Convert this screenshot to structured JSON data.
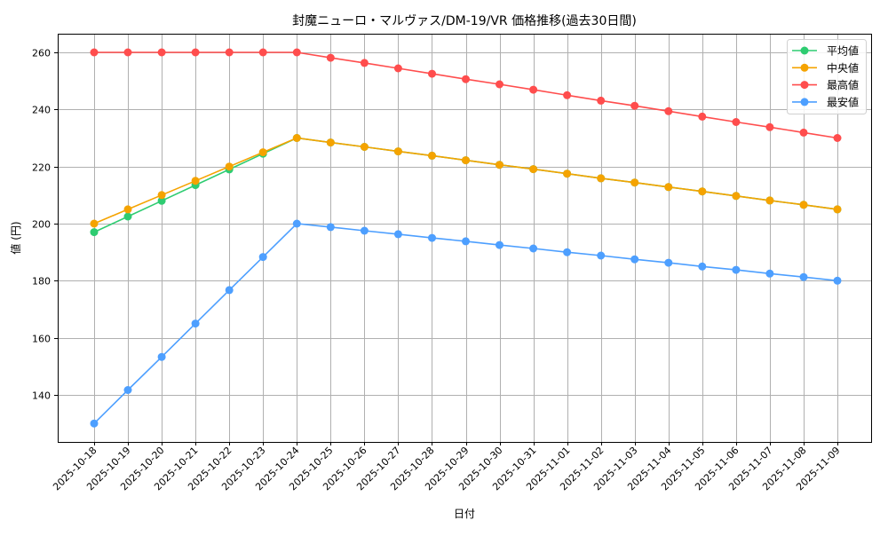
{
  "chart_data": {
    "type": "line",
    "title": "封魔ニューロ・マルヴァス/DM-19/VR 価格推移(過去30日間)",
    "xlabel": "日付",
    "ylabel": "値 (円)",
    "ylim": [
      123,
      266
    ],
    "yticks": [
      140,
      160,
      180,
      200,
      220,
      240,
      260
    ],
    "grid": true,
    "legend_position": "upper right",
    "categories": [
      "2025-10-18",
      "2025-10-19",
      "2025-10-20",
      "2025-10-21",
      "2025-10-22",
      "2025-10-23",
      "2025-10-24",
      "2025-10-25",
      "2025-10-26",
      "2025-10-27",
      "2025-10-28",
      "2025-10-29",
      "2025-10-30",
      "2025-10-31",
      "2025-11-01",
      "2025-11-02",
      "2025-11-03",
      "2025-11-04",
      "2025-11-05",
      "2025-11-06",
      "2025-11-07",
      "2025-11-08",
      "2025-11-09"
    ],
    "series": [
      {
        "name": "平均値",
        "color": "#2ecc71",
        "values": [
          197,
          202.5,
          208,
          213.5,
          219,
          224.5,
          230,
          228.4,
          226.9,
          225.3,
          223.8,
          222.2,
          220.6,
          219.1,
          217.5,
          215.9,
          214.4,
          212.8,
          211.3,
          209.7,
          208.1,
          206.6,
          205
        ]
      },
      {
        "name": "中央値",
        "color": "#f5a300",
        "values": [
          200,
          205,
          210,
          215,
          220,
          225,
          230,
          228.4,
          226.9,
          225.3,
          223.8,
          222.2,
          220.6,
          219.1,
          217.5,
          215.9,
          214.4,
          212.8,
          211.3,
          209.7,
          208.1,
          206.6,
          205
        ]
      },
      {
        "name": "最高値",
        "color": "#ff4d4d",
        "values": [
          260,
          260,
          260,
          260,
          260,
          260,
          260,
          258.1,
          256.3,
          254.4,
          252.5,
          250.6,
          248.8,
          246.9,
          245,
          243.1,
          241.3,
          239.4,
          237.5,
          235.6,
          233.8,
          231.9,
          230
        ]
      },
      {
        "name": "最安値",
        "color": "#4d9fff",
        "values": [
          130,
          141.7,
          153.3,
          165,
          176.7,
          188.3,
          200,
          198.8,
          197.5,
          196.3,
          195,
          193.8,
          192.5,
          191.3,
          190,
          188.8,
          187.5,
          186.3,
          185,
          183.8,
          182.5,
          181.3,
          180
        ]
      }
    ]
  }
}
